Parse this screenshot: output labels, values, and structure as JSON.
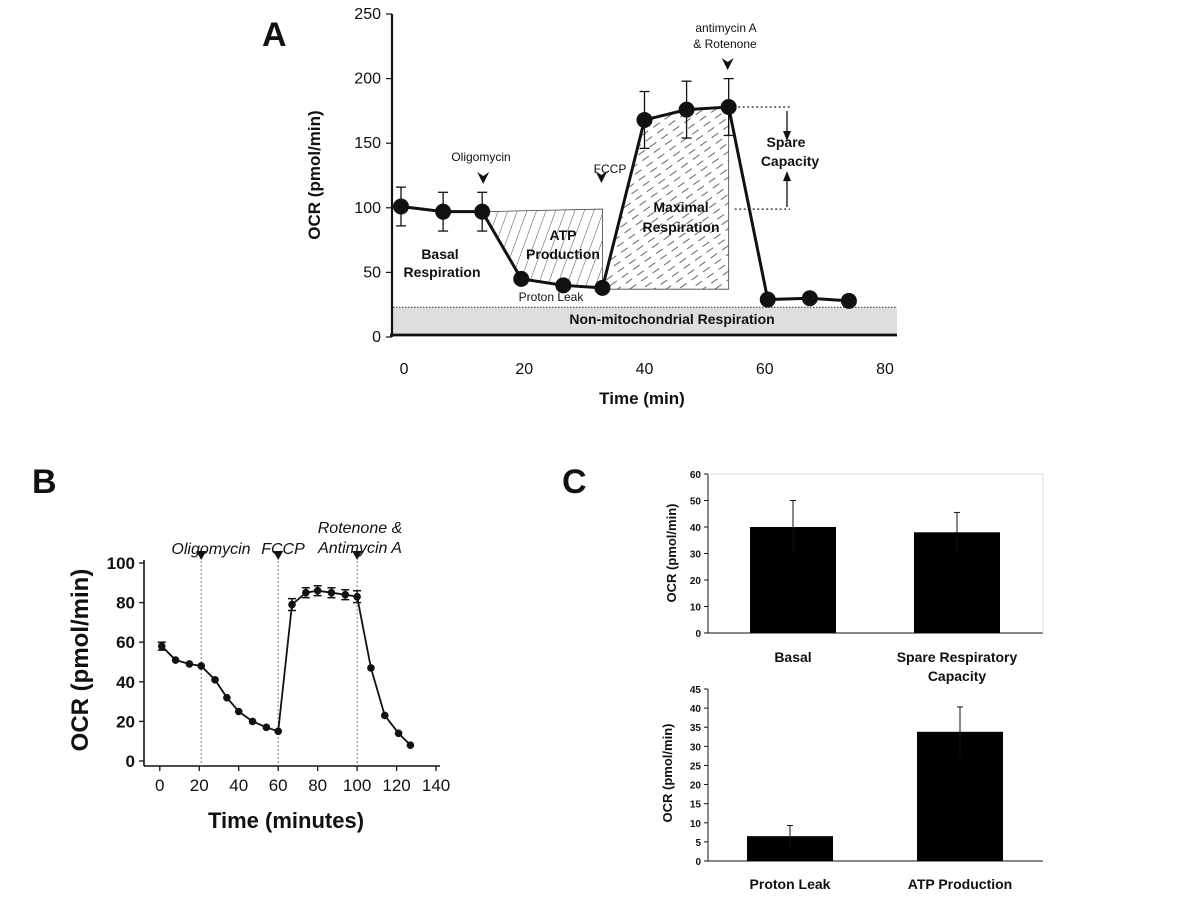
{
  "chart_data": [
    {
      "id": "A",
      "type": "line",
      "panel_label": "A",
      "xlabel": "Time (min)",
      "ylabel": "OCR (pmol/min)",
      "xlim": [
        -2,
        82
      ],
      "ylim": [
        0,
        250
      ],
      "xticks": [
        0,
        20,
        40,
        60,
        80
      ],
      "yticks": [
        0,
        50,
        100,
        150,
        200,
        250
      ],
      "series": [
        {
          "name": "OCR",
          "x": [
            -0.5,
            6.5,
            13,
            19.5,
            26.5,
            33,
            40,
            47,
            54,
            60.5,
            67.5,
            74
          ],
          "y": [
            101,
            97,
            97,
            45,
            40,
            38,
            168,
            176,
            178,
            29,
            30,
            28
          ],
          "err": [
            15,
            15,
            15,
            0,
            0,
            0,
            22,
            22,
            22,
            0,
            0,
            0
          ]
        }
      ],
      "injections": [
        {
          "label": "Oligomycin",
          "x": 13
        },
        {
          "label": "FCCP",
          "x": 33
        },
        {
          "label_line1": "antimycin A",
          "label_line2": "& Rotenone",
          "x": 54
        }
      ],
      "non_mito_level": 23,
      "regions": {
        "basal": [
          "Basal",
          "Respiration"
        ],
        "atp": [
          "ATP",
          "Production"
        ],
        "proton_leak": "Proton Leak",
        "maximal": [
          "Maximal",
          "Respiration"
        ],
        "spare": [
          "Spare",
          "Capacity"
        ],
        "non_mito": "Non-mitochondrial Respiration"
      }
    },
    {
      "id": "B",
      "type": "line",
      "panel_label": "B",
      "xlabel": "Time (minutes)",
      "ylabel": "OCR (pmol/min)",
      "xlim": [
        -8,
        142
      ],
      "ylim": [
        -2,
        100
      ],
      "xticks": [
        0,
        20,
        40,
        60,
        80,
        100,
        120,
        140
      ],
      "yticks": [
        0,
        20,
        40,
        60,
        80,
        100
      ],
      "series": [
        {
          "name": "OCR",
          "x": [
            1,
            8,
            15,
            21,
            28,
            34,
            40,
            47,
            54,
            60,
            67,
            74,
            80,
            87,
            94,
            100,
            107,
            114,
            121,
            127
          ],
          "y": [
            58,
            51,
            49,
            48,
            41,
            32,
            25,
            20,
            17,
            15,
            79,
            85,
            86,
            85,
            84,
            83,
            47,
            23,
            14,
            8
          ],
          "err": [
            2,
            0,
            0,
            0,
            0,
            0,
            0,
            0,
            0,
            0,
            3,
            2.5,
            2.5,
            2.5,
            2.5,
            3,
            0,
            0,
            0,
            0
          ]
        }
      ],
      "injections": [
        {
          "label": "Oligomycin",
          "x": 21
        },
        {
          "label": "FCCP",
          "x": 60
        },
        {
          "label_line1": "Rotenone &",
          "label_line2": "Antimycin A",
          "x": 100
        }
      ]
    },
    {
      "id": "C1",
      "type": "bar",
      "panel_label": "C",
      "ylabel": "OCR (pmol/min)",
      "categories": [
        "Basal",
        "Spare Respiratory Capacity"
      ],
      "category_lines": [
        [
          "Basal"
        ],
        [
          "Spare Respiratory",
          "Capacity"
        ]
      ],
      "values": [
        40,
        38
      ],
      "errors": [
        10,
        7.5
      ],
      "ylim": [
        0,
        60
      ],
      "yticks": [
        0,
        10,
        20,
        30,
        40,
        50,
        60
      ]
    },
    {
      "id": "C2",
      "type": "bar",
      "ylabel": "OCR (pmol/min)",
      "categories": [
        "Proton Leak",
        "ATP Production"
      ],
      "category_lines": [
        [
          "Proton Leak"
        ],
        [
          "ATP Production"
        ]
      ],
      "values": [
        6.5,
        33.8
      ],
      "errors": [
        2.8,
        6.5
      ],
      "ylim": [
        0,
        45
      ],
      "yticks": [
        0,
        5,
        10,
        15,
        20,
        25,
        30,
        35,
        40,
        45
      ]
    }
  ]
}
